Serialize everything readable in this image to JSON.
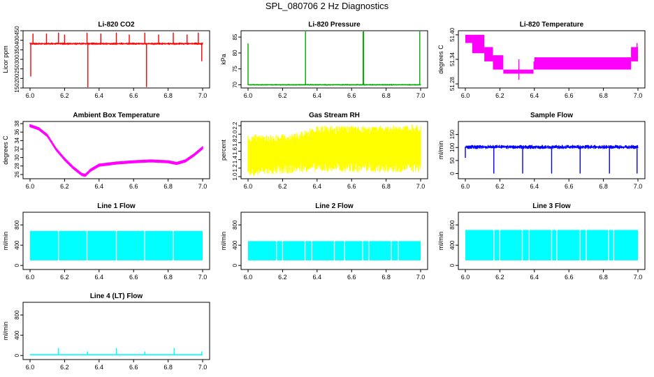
{
  "page": {
    "title": "SPL_080706  2 Hz Diagnostics"
  },
  "chart_data": [
    {
      "type": "line",
      "title": "Li-820 CO2",
      "ylabel": "Licor ppm",
      "color": "#ff0000",
      "xlim": [
        6.0,
        7.0
      ],
      "ylim": [
        150,
        450
      ],
      "xticks": [
        "6.0",
        "6.2",
        "6.4",
        "6.6",
        "6.8",
        "7.0"
      ],
      "yticks": [
        "150",
        "200",
        "250",
        "300",
        "350",
        "400",
        "450"
      ],
      "series": [
        {
          "name": "CO2",
          "baseline": 382,
          "band": 6,
          "spikes": [
            {
              "x": 6.004,
              "y": 210
            },
            {
              "x": 6.017,
              "y": 435
            },
            {
              "x": 6.095,
              "y": 435
            },
            {
              "x": 6.165,
              "y": 440
            },
            {
              "x": 6.2,
              "y": 430
            },
            {
              "x": 6.335,
              "y": 140
            },
            {
              "x": 6.33,
              "y": 440
            },
            {
              "x": 6.41,
              "y": 435
            },
            {
              "x": 6.5,
              "y": 440
            },
            {
              "x": 6.575,
              "y": 430
            },
            {
              "x": 6.665,
              "y": 440
            },
            {
              "x": 6.675,
              "y": 155
            },
            {
              "x": 6.745,
              "y": 430
            },
            {
              "x": 6.83,
              "y": 440
            },
            {
              "x": 6.91,
              "y": 430
            },
            {
              "x": 6.975,
              "y": 440
            },
            {
              "x": 6.995,
              "y": 290
            }
          ]
        }
      ]
    },
    {
      "type": "line",
      "title": "Li-820 Pressure",
      "ylabel": "kPa",
      "color": "#00aa00",
      "xlim": [
        6.0,
        7.0
      ],
      "ylim": [
        69,
        87
      ],
      "xticks": [
        "6.0",
        "6.2",
        "6.4",
        "6.6",
        "6.8",
        "7.0"
      ],
      "yticks": [
        "70",
        "75",
        "80",
        "85"
      ],
      "series": [
        {
          "name": "Pressure",
          "baseline": 70.0,
          "band": 0.25,
          "spikes": [
            {
              "x": 6.0,
              "y": 83
            },
            {
              "x": 6.333,
              "y": 87
            },
            {
              "x": 6.667,
              "y": 87
            },
            {
              "x": 6.67,
              "y": 87
            },
            {
              "x": 6.995,
              "y": 87
            }
          ]
        }
      ]
    },
    {
      "type": "area",
      "title": "Li-820 Temperature",
      "ylabel": "degrees C",
      "color": "#ff00ff",
      "xlim": [
        6.0,
        7.0
      ],
      "ylim": [
        51.27,
        51.41
      ],
      "xticks": [
        "6.0",
        "6.2",
        "6.4",
        "6.6",
        "6.8",
        "7.0"
      ],
      "yticks": [
        "51.28",
        "51.34",
        "51.40"
      ],
      "series": [
        {
          "name": "Temperature",
          "steps": [
            {
              "x0": 6.0,
              "x1": 6.04,
              "lo": 51.38,
              "hi": 51.4
            },
            {
              "x0": 6.04,
              "x1": 6.11,
              "lo": 51.355,
              "hi": 51.4
            },
            {
              "x0": 6.11,
              "x1": 6.16,
              "lo": 51.335,
              "hi": 51.37
            },
            {
              "x0": 6.16,
              "x1": 6.22,
              "lo": 51.315,
              "hi": 51.35
            },
            {
              "x0": 6.22,
              "x1": 6.395,
              "lo": 51.305,
              "hi": 51.315
            },
            {
              "x0": 6.395,
              "x1": 6.96,
              "lo": 51.315,
              "hi": 51.335
            },
            {
              "x0": 6.4,
              "x1": 6.96,
              "lo": 51.32,
              "hi": 51.345
            },
            {
              "x0": 6.96,
              "x1": 7.0,
              "lo": 51.335,
              "hi": 51.37
            }
          ],
          "spikes": [
            {
              "x": 6.31,
              "y": 51.29
            },
            {
              "x": 6.995,
              "y": 51.38
            }
          ]
        }
      ]
    },
    {
      "type": "line",
      "title": "Ambient Box Temperature",
      "ylabel": "degrees C",
      "color": "#ff00ff",
      "xlim": [
        6.0,
        7.0
      ],
      "ylim": [
        25,
        38.5
      ],
      "xticks": [
        "6.0",
        "6.2",
        "6.4",
        "6.6",
        "6.8",
        "7.0"
      ],
      "yticks": [
        "26",
        "28",
        "30",
        "32",
        "34",
        "36",
        "38"
      ],
      "series": [
        {
          "name": "Temperature",
          "x": [
            6.0,
            6.05,
            6.1,
            6.15,
            6.2,
            6.25,
            6.3,
            6.32,
            6.35,
            6.4,
            6.5,
            6.6,
            6.7,
            6.8,
            6.85,
            6.9,
            6.95,
            7.0
          ],
          "y": [
            37.5,
            36.8,
            35.2,
            32.0,
            29.6,
            27.6,
            26.0,
            25.8,
            27.0,
            28.2,
            28.7,
            29.0,
            29.2,
            29.0,
            28.6,
            29.2,
            30.6,
            32.3
          ],
          "band": 0.35
        }
      ]
    },
    {
      "type": "area",
      "title": "Gas Stream RH",
      "ylabel": "percent",
      "color": "#ffff00",
      "xlim": [
        6.0,
        7.0
      ],
      "ylim": [
        0.95,
        2.3
      ],
      "xticks": [
        "6.0",
        "6.2",
        "6.4",
        "6.6",
        "6.8",
        "7.0"
      ],
      "yticks": [
        "1.0",
        "1.2",
        "1.4",
        "1.6",
        "1.8",
        "2.0",
        "2.2"
      ],
      "series": [
        {
          "name": "RH",
          "x": [
            6.0,
            6.2,
            6.3,
            6.4,
            6.6,
            6.8,
            7.0
          ],
          "lo": [
            1.0,
            1.05,
            1.1,
            1.1,
            1.1,
            1.1,
            1.1
          ],
          "hi": [
            2.0,
            2.0,
            2.05,
            2.2,
            2.2,
            2.2,
            2.25
          ]
        }
      ]
    },
    {
      "type": "line",
      "title": "Sample Flow",
      "ylabel": "ml/min",
      "color": "#0000ff",
      "xlim": [
        6.0,
        7.0
      ],
      "ylim": [
        -20,
        200
      ],
      "xticks": [
        "6.0",
        "6.2",
        "6.4",
        "6.6",
        "6.8",
        "7.0"
      ],
      "yticks": [
        "0",
        "50",
        "100",
        "150"
      ],
      "series": [
        {
          "name": "Flow",
          "baseline": 102,
          "band": 8,
          "spikes": [
            {
              "x": 6.165,
              "y": 0
            },
            {
              "x": 6.332,
              "y": 0
            },
            {
              "x": 6.5,
              "y": 0
            },
            {
              "x": 6.665,
              "y": 0
            },
            {
              "x": 6.835,
              "y": 0
            },
            {
              "x": 6.995,
              "y": 0
            },
            {
              "x": 6.0,
              "y": 60
            }
          ]
        }
      ]
    },
    {
      "type": "area",
      "title": "Line 1 Flow",
      "ylabel": "ml/min",
      "color": "#00ffff",
      "xlim": [
        6.0,
        7.0
      ],
      "ylim": [
        -80,
        1050
      ],
      "xticks": [
        "6.0",
        "6.2",
        "6.4",
        "6.6",
        "6.8",
        "7.0"
      ],
      "yticks": [
        "0",
        "400",
        "800"
      ],
      "series": [
        {
          "name": "Flow",
          "lo": 100,
          "hi": 680,
          "gaps": [
            6.165,
            6.33,
            6.5,
            6.665,
            6.83
          ]
        }
      ]
    },
    {
      "type": "area",
      "title": "Line 2 Flow",
      "ylabel": "ml/min",
      "color": "#00ffff",
      "xlim": [
        6.0,
        7.0
      ],
      "ylim": [
        -80,
        1050
      ],
      "xticks": [
        "6.0",
        "6.2",
        "6.4",
        "6.6",
        "6.8",
        "7.0"
      ],
      "yticks": [
        "0",
        "400",
        "800"
      ],
      "series": [
        {
          "name": "Flow",
          "lo": 100,
          "hi": 480,
          "gaps": [
            6.165,
            6.2,
            6.33,
            6.37,
            6.5,
            6.56,
            6.665,
            6.7,
            6.83,
            6.87
          ]
        }
      ]
    },
    {
      "type": "area",
      "title": "Line 3 Flow",
      "ylabel": "ml/min",
      "color": "#00ffff",
      "xlim": [
        6.0,
        7.0
      ],
      "ylim": [
        -80,
        1050
      ],
      "xticks": [
        "6.0",
        "6.2",
        "6.4",
        "6.6",
        "6.8",
        "7.0"
      ],
      "yticks": [
        "0",
        "400",
        "800"
      ],
      "series": [
        {
          "name": "Flow",
          "lo": 100,
          "hi": 700,
          "gaps": [
            6.165,
            6.2,
            6.33,
            6.37,
            6.5,
            6.53,
            6.665,
            6.7,
            6.83,
            6.86
          ]
        }
      ]
    },
    {
      "type": "line",
      "title": "Line 4 (LT) Flow",
      "ylabel": "ml/min",
      "color": "#00ffff",
      "xlim": [
        6.0,
        7.0
      ],
      "ylim": [
        -80,
        1050
      ],
      "xticks": [
        "6.0",
        "6.2",
        "6.4",
        "6.6",
        "6.8",
        "7.0"
      ],
      "yticks": [
        "0",
        "400",
        "800"
      ],
      "series": [
        {
          "name": "Flow",
          "baseline": 15,
          "band": 6,
          "spikes": [
            {
              "x": 6.165,
              "y": 150
            },
            {
              "x": 6.333,
              "y": 80
            },
            {
              "x": 6.5,
              "y": 150
            },
            {
              "x": 6.665,
              "y": 80
            },
            {
              "x": 6.835,
              "y": 150
            },
            {
              "x": 6.995,
              "y": 80
            }
          ]
        }
      ]
    }
  ]
}
